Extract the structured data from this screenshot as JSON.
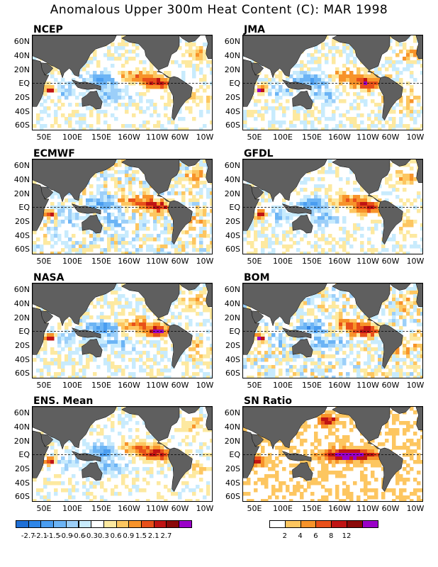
{
  "title": "Anomalous Upper 300m Heat Content (C): MAR 1998",
  "y_labels": [
    "60N",
    "40N",
    "20N",
    "EQ",
    "20S",
    "40S",
    "60S"
  ],
  "x_labels": [
    "50E",
    "100E",
    "150E",
    "160W",
    "110W",
    "60W",
    "10W"
  ],
  "panels": [
    {
      "label": "NCEP",
      "type": "anomaly"
    },
    {
      "label": "JMA",
      "type": "anomaly"
    },
    {
      "label": "ECMWF",
      "type": "anomaly"
    },
    {
      "label": "GFDL",
      "type": "anomaly"
    },
    {
      "label": "NASA",
      "type": "anomaly"
    },
    {
      "label": "BOM",
      "type": "anomaly"
    },
    {
      "label": "ENS. Mean",
      "type": "anomaly"
    },
    {
      "label": "SN Ratio",
      "type": "ratio"
    }
  ],
  "anomaly_colorbar": {
    "labels": [
      "-2.7",
      "-2.1",
      "-1.5",
      "-0.9",
      "-0.6",
      "-0.3",
      "0.3",
      "0.6",
      "0.9",
      "1.5",
      "2.1",
      "2.7"
    ],
    "colors": [
      "#1e6fd6",
      "#2f86e8",
      "#4a9df0",
      "#6cb4f5",
      "#9ccff9",
      "#c8ebfd",
      "#ffffff",
      "#fde9a0",
      "#fdc660",
      "#f7932a",
      "#e8501a",
      "#c01414",
      "#8b0a0a",
      "#9a00c8"
    ]
  },
  "ratio_colorbar": {
    "labels": [
      "2",
      "4",
      "6",
      "8",
      "12"
    ],
    "colors": [
      "#ffffff",
      "#fdc660",
      "#f7932a",
      "#e8501a",
      "#c01414",
      "#8b0a0a",
      "#9a00c8"
    ]
  },
  "land_color": "#5f5f5f"
}
